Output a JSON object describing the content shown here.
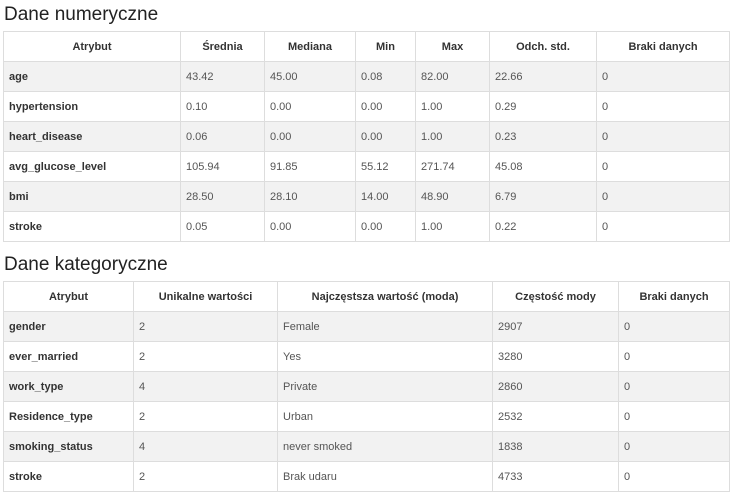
{
  "numeric": {
    "title": "Dane numeryczne",
    "columns": [
      "Atrybut",
      "Średnia",
      "Mediana",
      "Min",
      "Max",
      "Odch. std.",
      "Braki danych"
    ],
    "rows": [
      [
        "age",
        "43.42",
        "45.00",
        "0.08",
        "82.00",
        "22.66",
        "0"
      ],
      [
        "hypertension",
        "0.10",
        "0.00",
        "0.00",
        "1.00",
        "0.29",
        "0"
      ],
      [
        "heart_disease",
        "0.06",
        "0.00",
        "0.00",
        "1.00",
        "0.23",
        "0"
      ],
      [
        "avg_glucose_level",
        "105.94",
        "91.85",
        "55.12",
        "271.74",
        "45.08",
        "0"
      ],
      [
        "bmi",
        "28.50",
        "28.10",
        "14.00",
        "48.90",
        "6.79",
        "0"
      ],
      [
        "stroke",
        "0.05",
        "0.00",
        "0.00",
        "1.00",
        "0.22",
        "0"
      ]
    ]
  },
  "categorical": {
    "title": "Dane kategoryczne",
    "columns": [
      "Atrybut",
      "Unikalne wartości",
      "Najczęstsza wartość (moda)",
      "Częstość mody",
      "Braki danych"
    ],
    "rows": [
      [
        "gender",
        "2",
        "Female",
        "2907",
        "0"
      ],
      [
        "ever_married",
        "2",
        "Yes",
        "3280",
        "0"
      ],
      [
        "work_type",
        "4",
        "Private",
        "2860",
        "0"
      ],
      [
        "Residence_type",
        "2",
        "Urban",
        "2532",
        "0"
      ],
      [
        "smoking_status",
        "4",
        "never smoked",
        "1838",
        "0"
      ],
      [
        "stroke",
        "2",
        "Brak udaru",
        "4733",
        "0"
      ]
    ]
  }
}
